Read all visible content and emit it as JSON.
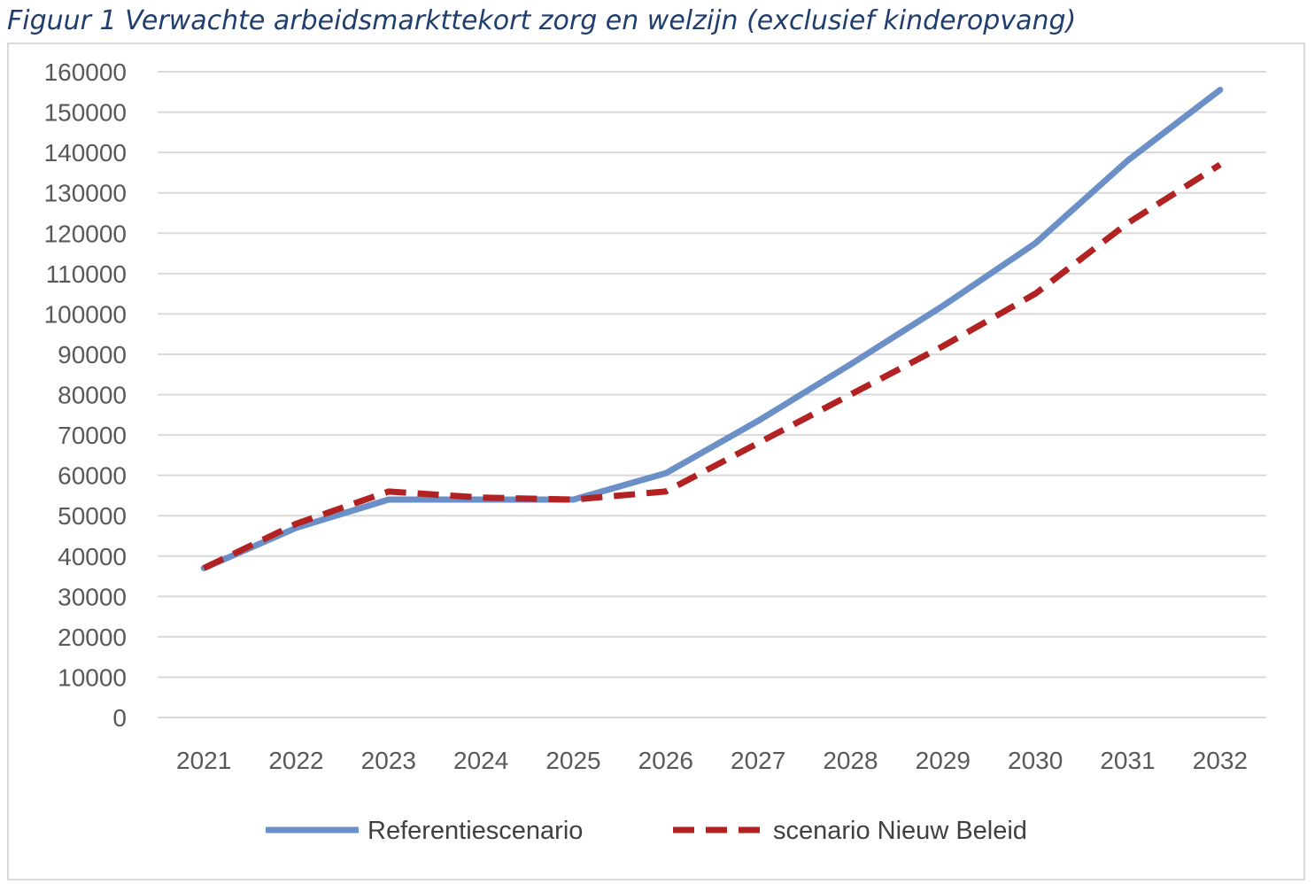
{
  "title": "Figuur 1 Verwachte arbeidsmarkttekort zorg en welzijn (exclusief kinderopvang)",
  "chart_data": {
    "type": "line",
    "title": "Figuur 1 Verwachte arbeidsmarkttekort zorg en welzijn (exclusief kinderopvang)",
    "xlabel": "",
    "ylabel": "",
    "ylim": [
      0,
      160000
    ],
    "y_ticks": [
      0,
      10000,
      20000,
      30000,
      40000,
      50000,
      60000,
      70000,
      80000,
      90000,
      100000,
      110000,
      120000,
      130000,
      140000,
      150000,
      160000
    ],
    "categories": [
      "2021",
      "2022",
      "2023",
      "2024",
      "2025",
      "2026",
      "2027",
      "2028",
      "2029",
      "2030",
      "2031",
      "2032"
    ],
    "grid": "horizontal",
    "legend_position": "bottom",
    "series": [
      {
        "name": "Referentiescenario",
        "color": "#6b8fc7",
        "style": "solid",
        "values": [
          37000,
          47000,
          54000,
          54000,
          54000,
          60500,
          73500,
          87500,
          102000,
          117500,
          138000,
          155500
        ]
      },
      {
        "name": "scenario Nieuw Beleid",
        "color": "#b22222",
        "style": "dashed",
        "values": [
          37000,
          48000,
          56000,
          54500,
          54000,
          56000,
          68000,
          80000,
          92000,
          105000,
          122500,
          137000
        ]
      }
    ]
  }
}
